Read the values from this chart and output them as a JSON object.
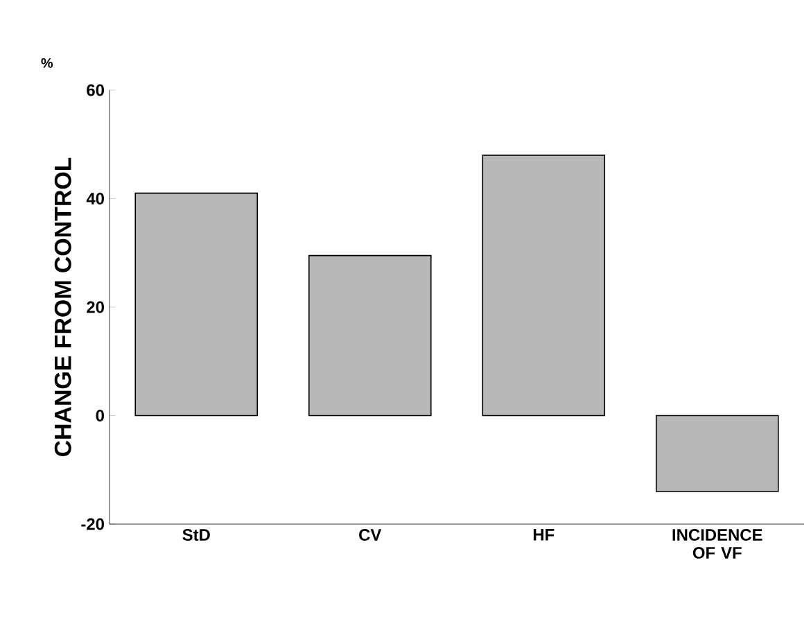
{
  "chart_data": {
    "type": "bar",
    "ylabel": "CHANGE FROM CONTROL",
    "annotations": [
      "%"
    ],
    "categories": [
      "StD",
      "CV",
      "HF",
      "INCIDENCE OF VF"
    ],
    "values": [
      41,
      29.5,
      48,
      -14
    ],
    "color": "#b8b8b8",
    "ylim": [
      -20,
      60
    ],
    "yticks": [
      -20,
      0,
      20,
      40,
      60
    ],
    "grid": false,
    "legend": false
  }
}
